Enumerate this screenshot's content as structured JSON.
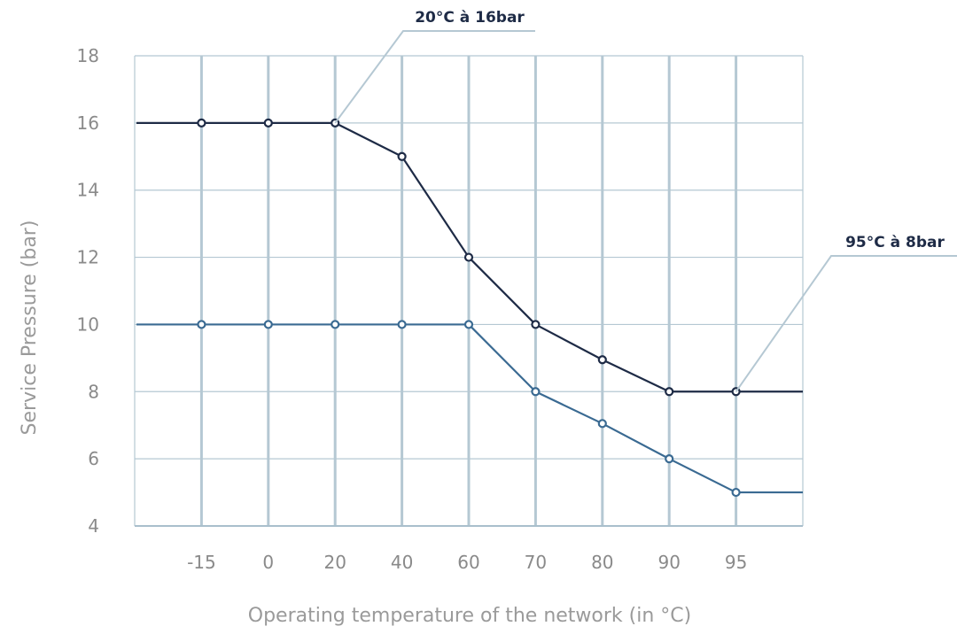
{
  "chart_data": {
    "type": "line",
    "categories": [
      "-15",
      "0",
      "20",
      "40",
      "60",
      "70",
      "80",
      "90",
      "95"
    ],
    "xlabel": "Operating temperature of the network (in °C)",
    "ylabel": "Service Pressure (bar)",
    "ylim": [
      4,
      18
    ],
    "yticks": [
      4,
      6,
      8,
      10,
      12,
      14,
      16,
      18
    ],
    "grid": true,
    "series": [
      {
        "values": [
          16,
          16,
          16,
          15,
          12,
          10,
          8.95,
          8,
          8
        ],
        "color": "#1e2b46",
        "extend_left": 16,
        "extend_right": 8
      },
      {
        "values": [
          10,
          10,
          10,
          10,
          10,
          8,
          7.05,
          6,
          5
        ],
        "color": "#3a6a92",
        "extend_left": 10,
        "extend_right": 5
      }
    ],
    "annotations": [
      {
        "text": "20°C à 16bar",
        "series": 0,
        "point": 2
      },
      {
        "text": "95°C à 8bar",
        "series": 0,
        "point": 8
      }
    ],
    "colors": {
      "grid": "#b5c8d3",
      "axis": "#a9bfcc"
    }
  }
}
